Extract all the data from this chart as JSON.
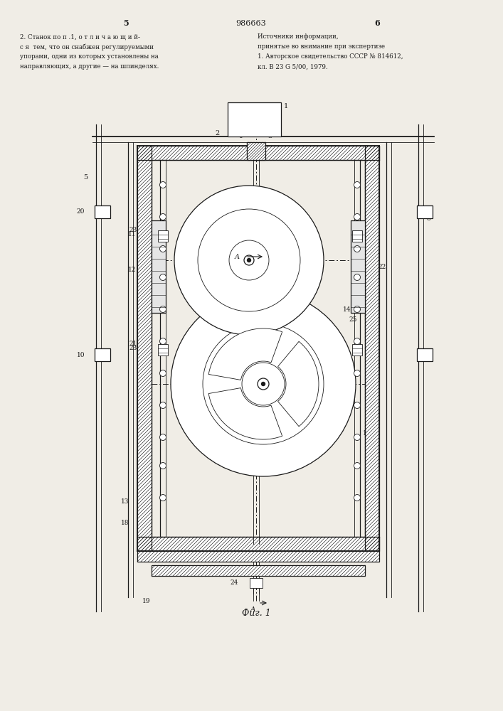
{
  "page_width": 7.07,
  "page_height": 10.0,
  "bg_color": "#f0ede6",
  "line_color": "#1a1a1a",
  "patent_number": "986663",
  "page_left": "5",
  "page_right": "6",
  "fig_caption": "Фиг. 1",
  "left_text_lines": [
    "2. Станок по п .1, о т л и ч а ю щ и й-",
    "с я  тем, что он снабжен регулируемыми",
    "упорами, одни из которых установлены на",
    "направляющих, а другие — на шпинделях."
  ],
  "right_text_lines": [
    "Источники информации,",
    "принятые во внимание при экспертизе",
    "1. Авторское свидетельство СССР № 814612,",
    "кл. В 23 G 5/00, 1979."
  ]
}
